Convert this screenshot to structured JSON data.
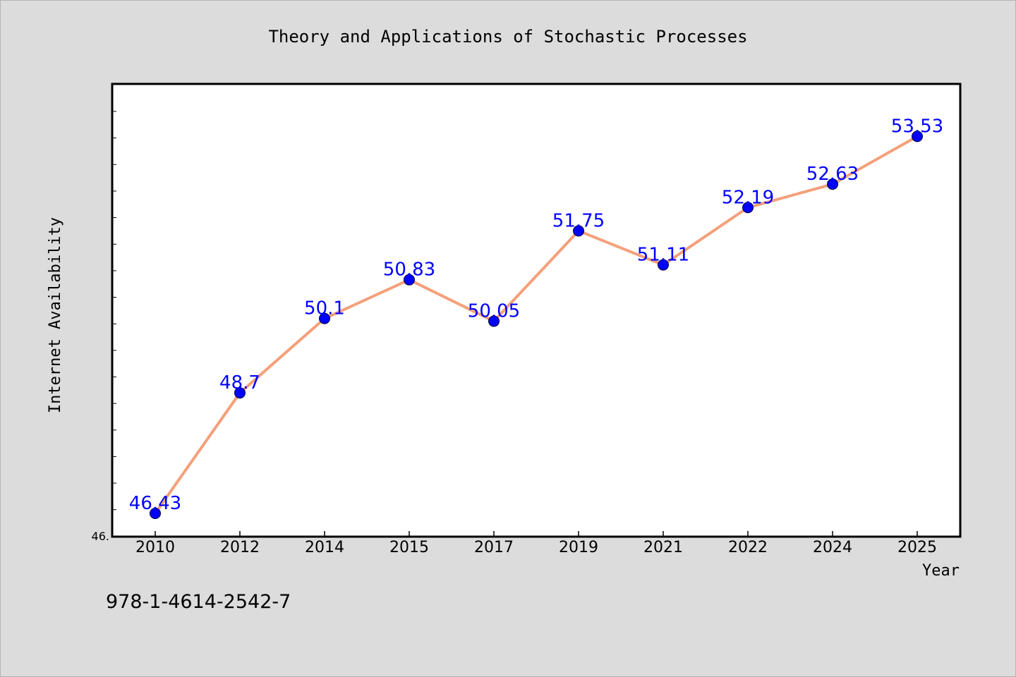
{
  "chart_data": {
    "type": "line",
    "title": "Theory and Applications of Stochastic Processes",
    "xlabel": "Year",
    "ylabel": "Internet Availability",
    "categories": [
      "2010",
      "2012",
      "2014",
      "2015",
      "2017",
      "2019",
      "2021",
      "2022",
      "2024",
      "2025"
    ],
    "series": [
      {
        "values": [
          46.43,
          48.7,
          50.1,
          50.83,
          50.05,
          51.75,
          51.11,
          52.19,
          52.63,
          53.53
        ],
        "data_labels": [
          "46.43",
          "48.7",
          "50.1",
          "50.83",
          "50.05",
          "51.75",
          "51.11",
          "52.19",
          "52.63",
          "53.53"
        ]
      }
    ],
    "y_tick_labels": [
      "46."
    ],
    "ylim": [
      46.0,
      54.5
    ],
    "grid": false,
    "legend": "none",
    "colors": {
      "line": "#f4a07a",
      "marker": "#0000ff",
      "data_label": "#0000ff",
      "plot_background": "#ffffff",
      "figure_background": "#dcdcdc"
    }
  },
  "footer": {
    "isbn": "978-1-4614-2542-7"
  }
}
